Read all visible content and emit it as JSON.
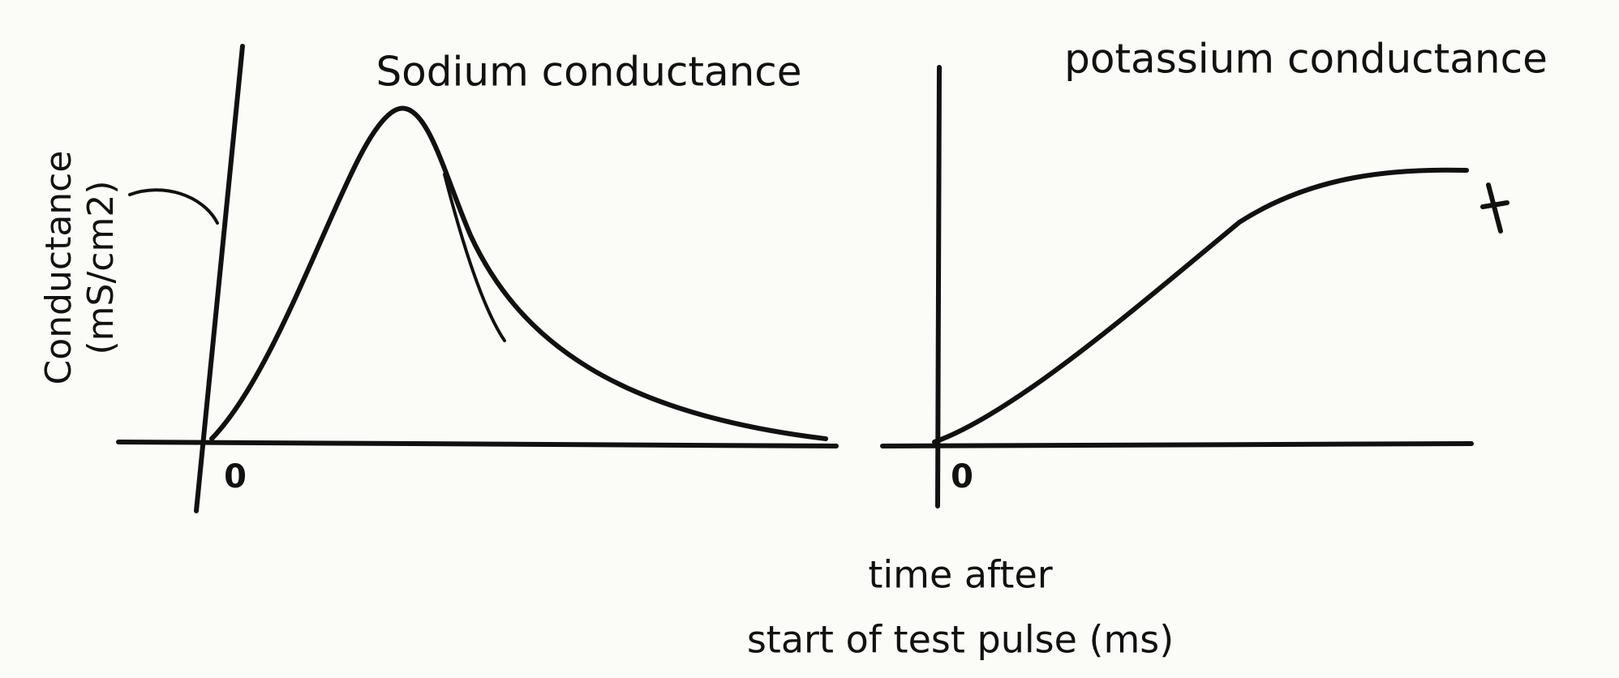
{
  "panels": [
    {
      "title": "Sodium conductance",
      "origin": "0"
    },
    {
      "title": "potassium conductance",
      "origin": "0"
    }
  ],
  "y_axis": {
    "label": "Conductance",
    "unit": "(mS/cm2)"
  },
  "x_axis": {
    "label_line1": "time after",
    "label_line2": "start of test pulse (ms)"
  }
}
